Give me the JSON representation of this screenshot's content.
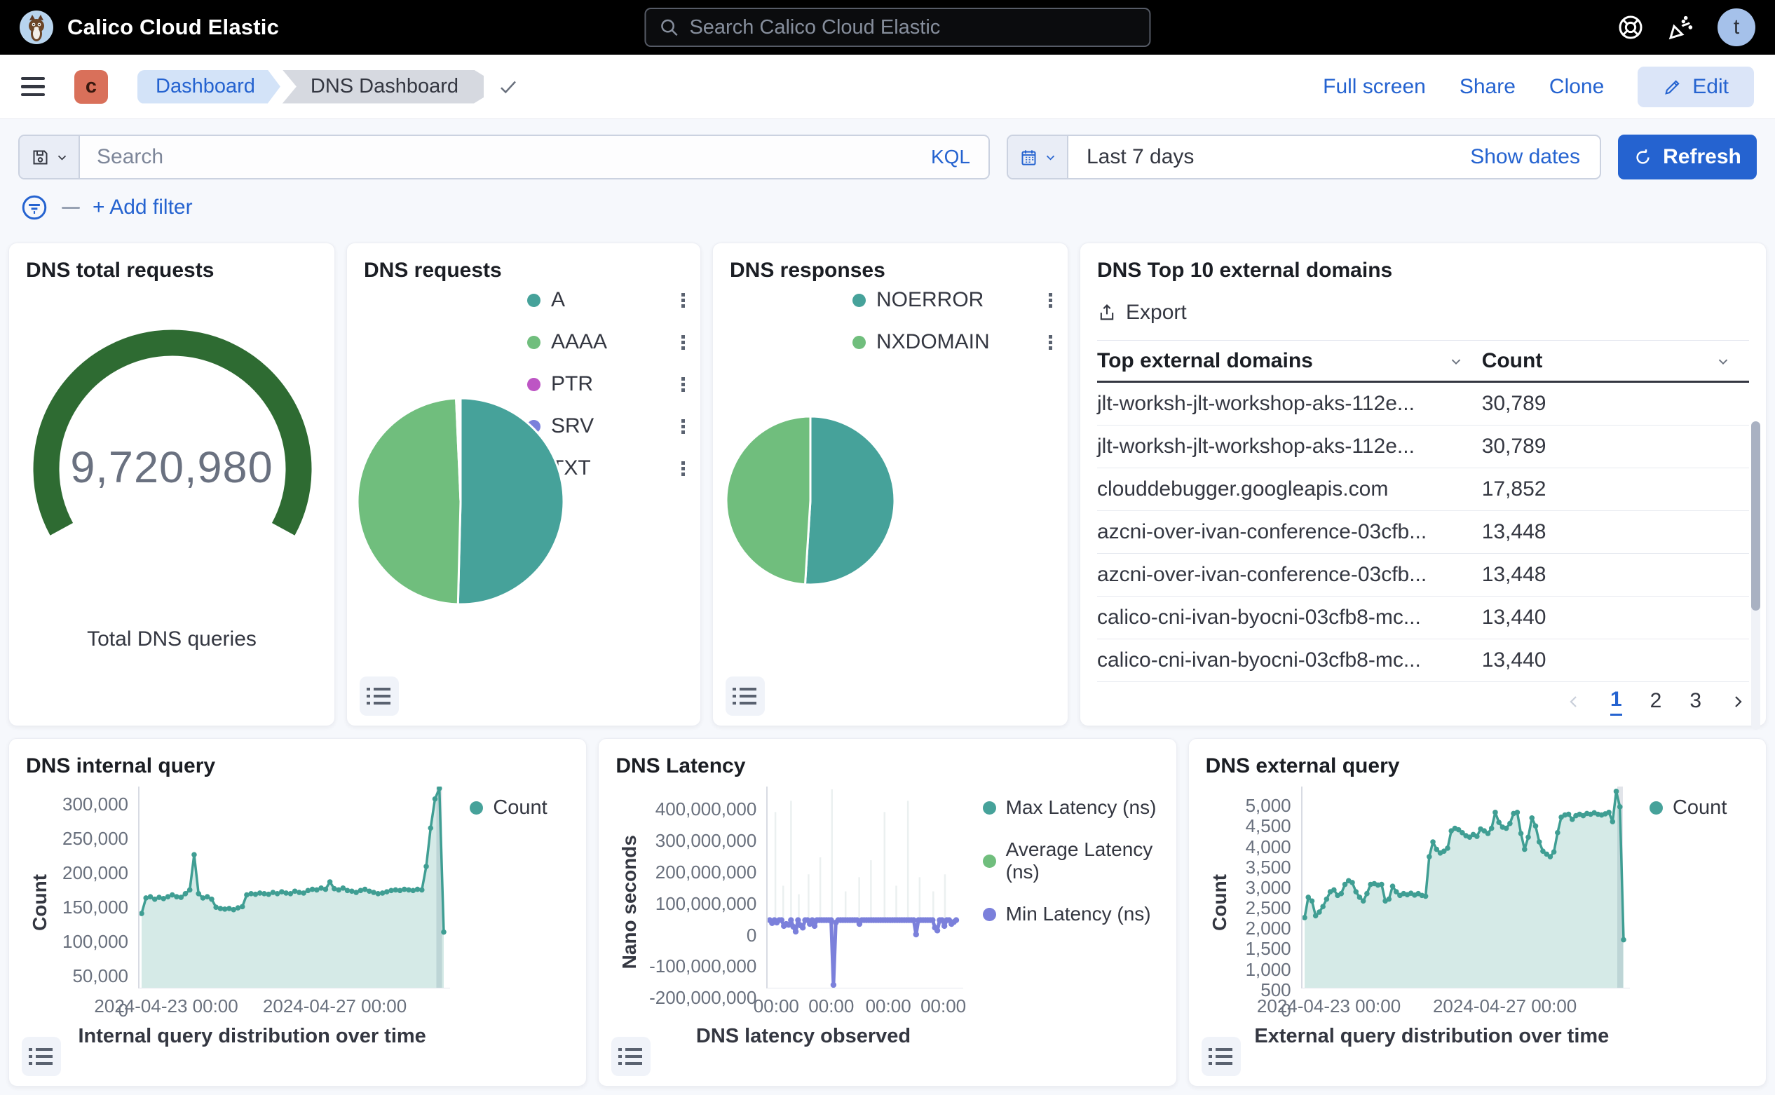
{
  "header": {
    "title": "Calico Cloud Elastic",
    "search_placeholder": "Search Calico Cloud Elastic",
    "avatar_initial": "t"
  },
  "toolbar": {
    "space_initial": "c",
    "breadcrumbs": [
      "Dashboard",
      "DNS Dashboard"
    ],
    "actions": [
      "Full screen",
      "Share",
      "Clone"
    ],
    "edit_label": "Edit"
  },
  "querybar": {
    "search_placeholder": "Search",
    "kql_label": "KQL",
    "time_range": "Last 7 days",
    "show_dates_label": "Show dates",
    "refresh_label": "Refresh",
    "add_filter_label": "+ Add filter"
  },
  "colors": {
    "accent_blue": "#2563d0",
    "teal": "#46a29a",
    "green": "#70be7d",
    "magenta": "#bd55c4",
    "periwinkle": "#7b80db",
    "dark_purple": "#5a2ea6",
    "gauge_green": "#2e6b32"
  },
  "chart_data": [
    {
      "id": "gauge",
      "type": "gauge",
      "title": "DNS total requests",
      "value": 9720980,
      "value_label": "9,720,980",
      "caption": "Total DNS queries",
      "color": "#2e6b32"
    },
    {
      "id": "requests-pie",
      "type": "pie",
      "title": "DNS requests",
      "legend_position": "top-right",
      "slices": [
        {
          "label": "A",
          "value": 50.4,
          "color": "#46a29a"
        },
        {
          "label": "AAAA",
          "value": 48.9,
          "color": "#70be7d"
        },
        {
          "label": "PTR",
          "value": 0.3,
          "color": "#bd55c4"
        },
        {
          "label": "SRV",
          "value": 0.2,
          "color": "#7b80db"
        },
        {
          "label": "TXT",
          "value": 0.2,
          "color": "#5a2ea6"
        }
      ]
    },
    {
      "id": "responses-pie",
      "type": "pie",
      "title": "DNS responses",
      "legend_position": "top-right",
      "slices": [
        {
          "label": "NOERROR",
          "value": 51.0,
          "color": "#46a29a"
        },
        {
          "label": "NXDOMAIN",
          "value": 49.0,
          "color": "#70be7d"
        }
      ]
    },
    {
      "id": "domains-table",
      "type": "table",
      "title": "DNS Top 10 external domains",
      "export_label": "Export",
      "columns": [
        "Top external domains",
        "Count"
      ],
      "rows": [
        [
          "jlt-worksh-jlt-workshop-aks-112e...",
          "30,789"
        ],
        [
          "jlt-worksh-jlt-workshop-aks-112e...",
          "30,789"
        ],
        [
          "clouddebugger.googleapis.com",
          "17,852"
        ],
        [
          "azcni-over-ivan-conference-03cfb...",
          "13,448"
        ],
        [
          "azcni-over-ivan-conference-03cfb...",
          "13,448"
        ],
        [
          "calico-cni-ivan-byocni-03cfb8-mc...",
          "13,440"
        ],
        [
          "calico-cni-ivan-byocni-03cfb8-mc...",
          "13,440"
        ]
      ],
      "pagination": {
        "pages": [
          "1",
          "2",
          "3"
        ],
        "active": "1"
      }
    },
    {
      "id": "internal-query",
      "type": "area",
      "title": "DNS internal query",
      "ylabel": "Count",
      "xlabel": "Internal query distribution over time",
      "legend": [
        {
          "label": "Count",
          "color": "#46a29a"
        }
      ],
      "color": "#3f9e93",
      "fill": "rgba(63,158,147,0.22)",
      "ylim": [
        0,
        325000
      ],
      "yticks": {
        "labels": [
          "300,000",
          "250,000",
          "200,000",
          "150,000",
          "100,000",
          "50,000",
          "0"
        ],
        "values": [
          300000,
          250000,
          200000,
          150000,
          100000,
          50000,
          0
        ]
      },
      "xticks": {
        "labels": [
          "2024-04-23 00:00",
          "2024-04-27 00:00"
        ],
        "fractions": [
          0.09,
          0.63
        ]
      },
      "band_fraction": 0.965,
      "values": [
        120000,
        145000,
        147000,
        143000,
        146000,
        144000,
        147000,
        150000,
        147000,
        146000,
        152000,
        158000,
        215000,
        152000,
        145000,
        147000,
        143000,
        130000,
        128000,
        127000,
        128000,
        126000,
        129000,
        131000,
        150000,
        152000,
        151000,
        153000,
        152000,
        151000,
        154000,
        152000,
        155000,
        153000,
        152000,
        156000,
        154000,
        153000,
        157000,
        159000,
        158000,
        161000,
        159000,
        171000,
        160000,
        158000,
        161000,
        157000,
        156000,
        154000,
        157000,
        159000,
        156000,
        154000,
        152000,
        153000,
        155000,
        157000,
        158000,
        157000,
        159000,
        158000,
        157000,
        159000,
        158000,
        196000,
        258000,
        305000,
        322000,
        90000
      ]
    },
    {
      "id": "latency",
      "type": "line",
      "title": "DNS Latency",
      "ylabel": "Nano seconds",
      "xlabel": "DNS latency observed",
      "legend": [
        {
          "label": "Max Latency (ns)",
          "color": "#46a29a"
        },
        {
          "label": "Average Latency (ns)",
          "color": "#70be7d"
        },
        {
          "label": "Min Latency (ns)",
          "color": "#7b80db"
        }
      ],
      "color": "#7b80db",
      "ylim": [
        -240000000,
        470000000
      ],
      "yticks": {
        "labels": [
          "400,000,000",
          "300,000,000",
          "200,000,000",
          "100,000,000",
          "0",
          "-100,000,000",
          "-200,000,000"
        ],
        "values": [
          400000000,
          300000000,
          200000000,
          100000000,
          0,
          -100000000,
          -200000000
        ]
      },
      "xticks": {
        "labels": [
          "00:00",
          "00:00",
          "00:00",
          "00:00"
        ],
        "fractions": [
          0.05,
          0.33,
          0.62,
          0.9
        ]
      },
      "min_values": [
        -1500000,
        -12000000,
        -1500000,
        -10000000,
        -1500000,
        -1500000,
        -22000000,
        -15000000,
        -18000000,
        -1500000,
        -25000000,
        -42000000,
        -1500000,
        -20000000,
        -28000000,
        -1500000,
        -1500000,
        -15000000,
        -1500000,
        -22000000,
        -1500000,
        -1500000,
        -1500000,
        -1500000,
        -1500000,
        -1500000,
        -1500000,
        -230000000,
        -10000000,
        -1500000,
        -1500000,
        -1500000,
        -1500000,
        -1500000,
        -1500000,
        -1500000,
        -1500000,
        -1500000,
        -15000000,
        -1500000,
        -1500000,
        -1500000,
        -1500000,
        -1500000,
        -1500000,
        -1500000,
        -1500000,
        -1500000,
        -1500000,
        -1500000,
        -1500000,
        -1500000,
        -1500000,
        -1500000,
        -1500000,
        -1500000,
        -1500000,
        -1500000,
        -1500000,
        -1500000,
        -1500000,
        -1500000,
        -52000000,
        -1500000,
        -1500000,
        -1500000,
        -1500000,
        -1500000,
        -1500000,
        -1500000,
        -28000000,
        -38000000,
        -1500000,
        -1500000,
        -22000000,
        -1500000,
        -1500000,
        -15000000,
        -8000000,
        -1500000
      ],
      "max_spikes": [
        {
          "f": 0.04,
          "v": 380000000
        },
        {
          "f": 0.08,
          "v": 120000000
        },
        {
          "f": 0.12,
          "v": 420000000
        },
        {
          "f": 0.16,
          "v": 90000000
        },
        {
          "f": 0.21,
          "v": 160000000
        },
        {
          "f": 0.27,
          "v": 220000000
        },
        {
          "f": 0.33,
          "v": 460000000
        },
        {
          "f": 0.4,
          "v": 100000000
        },
        {
          "f": 0.47,
          "v": 150000000
        },
        {
          "f": 0.53,
          "v": 210000000
        },
        {
          "f": 0.6,
          "v": 380000000
        },
        {
          "f": 0.66,
          "v": 120000000
        },
        {
          "f": 0.72,
          "v": 420000000
        },
        {
          "f": 0.78,
          "v": 150000000
        },
        {
          "f": 0.85,
          "v": 100000000
        },
        {
          "f": 0.91,
          "v": 160000000
        }
      ]
    },
    {
      "id": "external-query",
      "type": "area",
      "title": "DNS external query",
      "ylabel": "Count",
      "xlabel": "External query distribution over time",
      "legend": [
        {
          "label": "Count",
          "color": "#46a29a"
        }
      ],
      "color": "#3f9e93",
      "fill": "rgba(63,158,147,0.22)",
      "ylim": [
        0,
        5450
      ],
      "yticks": {
        "labels": [
          "5,000",
          "4,500",
          "4,000",
          "3,500",
          "3,000",
          "2,500",
          "2,000",
          "1,500",
          "1,000",
          "500",
          "0"
        ],
        "values": [
          5000,
          4500,
          4000,
          3500,
          3000,
          2500,
          2000,
          1500,
          1000,
          500,
          0
        ]
      },
      "xticks": {
        "labels": [
          "2024-04-23 00:00",
          "2024-04-27 00:00"
        ],
        "fractions": [
          0.085,
          0.62
        ]
      },
      "band_fraction": 0.97,
      "values": [
        1900,
        2450,
        2350,
        1950,
        2050,
        2200,
        2400,
        2600,
        2650,
        2500,
        2550,
        2800,
        2900,
        2850,
        2600,
        2450,
        2350,
        2550,
        2800,
        2820,
        2780,
        2800,
        2350,
        2400,
        2750,
        2600,
        2500,
        2550,
        2520,
        2560,
        2510,
        2550,
        2500,
        2480,
        3550,
        3950,
        3750,
        3650,
        3700,
        3780,
        4250,
        4320,
        4280,
        4200,
        4120,
        4080,
        4150,
        4100,
        4300,
        4250,
        4180,
        4320,
        4750,
        4480,
        4350,
        4320,
        4450,
        4720,
        4750,
        4180,
        3750,
        4080,
        4600,
        4380,
        3950,
        3700,
        3620,
        3550,
        3680,
        4200,
        4620,
        4680,
        4700,
        4560,
        4660,
        4700,
        4660,
        4720,
        4700,
        4740,
        4700,
        4680,
        4710,
        4750,
        4500,
        5320,
        4900,
        1300
      ]
    }
  ]
}
